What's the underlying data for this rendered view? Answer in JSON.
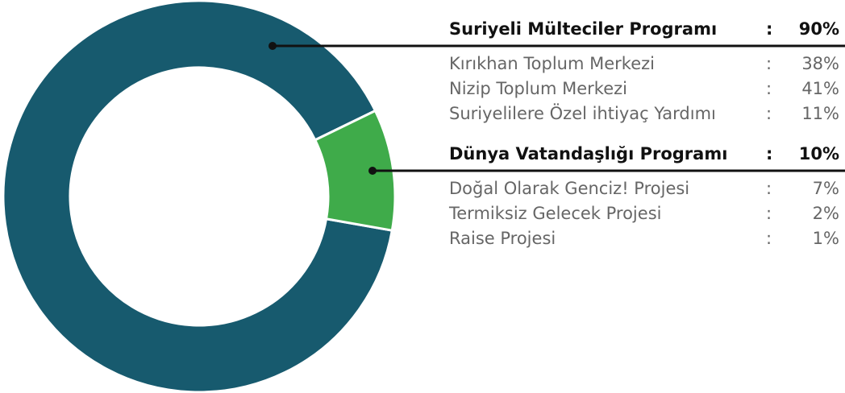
{
  "chart_data": {
    "type": "pie",
    "donut": true,
    "categories": [
      "Suriyeli Mülteciler Programı",
      "Dünya Vatandaşlığı Programı"
    ],
    "values": [
      90,
      10
    ],
    "value_labels": [
      "90%",
      "10%"
    ],
    "colors": [
      "#175a6e",
      "#3fab4a"
    ],
    "separator": ":",
    "breakdown": [
      {
        "names": [
          "Kırıkhan Toplum Merkezi",
          "Nizip Toplum Merkezi",
          "Suriyelilere Özel ihtiyaç Yardımı"
        ],
        "values": [
          38,
          41,
          11
        ],
        "value_labels": [
          "38%",
          "41%",
          "11%"
        ]
      },
      {
        "names": [
          "Doğal Olarak Genciz! Projesi",
          "Termiksiz Gelecek Projesi",
          "Raise Projesi"
        ],
        "values": [
          7,
          2,
          1
        ],
        "value_labels": [
          "7%",
          "2%",
          "1%"
        ]
      }
    ]
  }
}
